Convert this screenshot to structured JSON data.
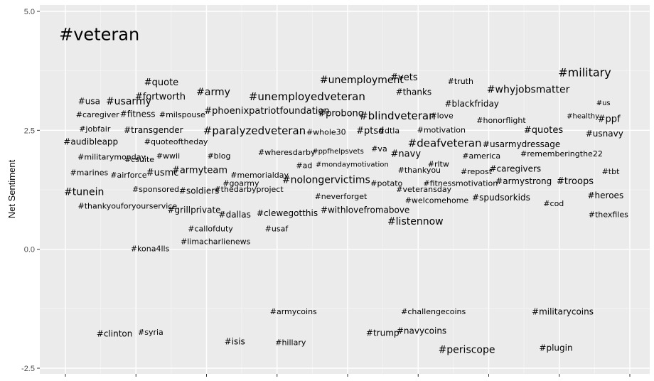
{
  "chart_data": {
    "type": "scatter",
    "subtype": "word-scatter",
    "ylabel": "Net Sentiment",
    "xlabel": "",
    "ylim": [
      -2.5,
      5.0
    ],
    "y_ticks": [
      "5.0",
      "2.5",
      "0.0",
      "-2.5"
    ],
    "grid": true,
    "colors": {
      "panel": "#ebebeb",
      "grid_major": "#ffffff",
      "grid_minor": "#f4f4f4",
      "text": "#000000",
      "tick_text": "#4d4d4d"
    },
    "words": [
      {
        "text": "#veteran",
        "x": 0.06,
        "y": 4.5,
        "size": 24
      },
      {
        "text": "#military",
        "x": 0.92,
        "y": 3.7,
        "size": 16
      },
      {
        "text": "#quote",
        "x": 0.17,
        "y": 3.5,
        "size": 13
      },
      {
        "text": "#unemployment",
        "x": 0.525,
        "y": 3.55,
        "size": 14
      },
      {
        "text": "#vets",
        "x": 0.6,
        "y": 3.6,
        "size": 13
      },
      {
        "text": "#truth",
        "x": 0.7,
        "y": 3.52,
        "size": 11
      },
      {
        "text": "#whyjobsmatter",
        "x": 0.82,
        "y": 3.35,
        "size": 14
      },
      {
        "text": "#army",
        "x": 0.262,
        "y": 3.3,
        "size": 14
      },
      {
        "text": "#thanks",
        "x": 0.617,
        "y": 3.3,
        "size": 12
      },
      {
        "text": "#fortworth",
        "x": 0.168,
        "y": 3.2,
        "size": 13
      },
      {
        "text": "#unemployedveteran",
        "x": 0.428,
        "y": 3.2,
        "size": 15
      },
      {
        "text": "#usa",
        "x": 0.042,
        "y": 3.1,
        "size": 12
      },
      {
        "text": "#usarmy",
        "x": 0.112,
        "y": 3.1,
        "size": 14
      },
      {
        "text": "#blackfriday",
        "x": 0.72,
        "y": 3.05,
        "size": 12
      },
      {
        "text": "#us",
        "x": 0.953,
        "y": 3.07,
        "size": 10
      },
      {
        "text": "#phoenixpatriotfoundation",
        "x": 0.357,
        "y": 2.9,
        "size": 13
      },
      {
        "text": "#probono",
        "x": 0.488,
        "y": 2.85,
        "size": 13
      },
      {
        "text": "#blindveteran",
        "x": 0.588,
        "y": 2.8,
        "size": 15
      },
      {
        "text": "#caregiver",
        "x": 0.057,
        "y": 2.82,
        "size": 11
      },
      {
        "text": "#fitness",
        "x": 0.128,
        "y": 2.83,
        "size": 12
      },
      {
        "text": "#milspouse",
        "x": 0.207,
        "y": 2.82,
        "size": 11
      },
      {
        "text": "#love",
        "x": 0.667,
        "y": 2.8,
        "size": 11
      },
      {
        "text": "#healthy",
        "x": 0.917,
        "y": 2.8,
        "size": 10
      },
      {
        "text": "#ppf",
        "x": 0.963,
        "y": 2.73,
        "size": 13
      },
      {
        "text": "#honorflight",
        "x": 0.772,
        "y": 2.7,
        "size": 11
      },
      {
        "text": "#jobfair",
        "x": 0.052,
        "y": 2.52,
        "size": 11
      },
      {
        "text": "#transgender",
        "x": 0.156,
        "y": 2.5,
        "size": 12
      },
      {
        "text": "#paralyzedveteran",
        "x": 0.335,
        "y": 2.48,
        "size": 15
      },
      {
        "text": "#whole30",
        "x": 0.462,
        "y": 2.45,
        "size": 11
      },
      {
        "text": "#ptsd",
        "x": 0.54,
        "y": 2.48,
        "size": 13
      },
      {
        "text": "#dtla",
        "x": 0.573,
        "y": 2.48,
        "size": 11
      },
      {
        "text": "#motivation",
        "x": 0.666,
        "y": 2.5,
        "size": 11
      },
      {
        "text": "#quotes",
        "x": 0.847,
        "y": 2.5,
        "size": 13
      },
      {
        "text": "#usnavy",
        "x": 0.955,
        "y": 2.42,
        "size": 12
      },
      {
        "text": "#audibleapp",
        "x": 0.045,
        "y": 2.25,
        "size": 12
      },
      {
        "text": "#quoteoftheday",
        "x": 0.196,
        "y": 2.25,
        "size": 11
      },
      {
        "text": "#deafveteran",
        "x": 0.672,
        "y": 2.22,
        "size": 15
      },
      {
        "text": "#usarmydressage",
        "x": 0.808,
        "y": 2.2,
        "size": 12
      },
      {
        "text": "#wheresdarby",
        "x": 0.392,
        "y": 2.03,
        "size": 11
      },
      {
        "text": "#ppfhelpsvets",
        "x": 0.483,
        "y": 2.06,
        "size": 10
      },
      {
        "text": "#va",
        "x": 0.556,
        "y": 2.1,
        "size": 11
      },
      {
        "text": "#navy",
        "x": 0.603,
        "y": 2.0,
        "size": 13
      },
      {
        "text": "#rememberingthe22",
        "x": 0.879,
        "y": 2.0,
        "size": 11
      },
      {
        "text": "#militarymonday",
        "x": 0.082,
        "y": 1.93,
        "size": 11
      },
      {
        "text": "#csuite",
        "x": 0.131,
        "y": 1.88,
        "size": 11
      },
      {
        "text": "#wwii",
        "x": 0.182,
        "y": 1.95,
        "size": 11
      },
      {
        "text": "#blog",
        "x": 0.272,
        "y": 1.95,
        "size": 11
      },
      {
        "text": "#america",
        "x": 0.737,
        "y": 1.95,
        "size": 11
      },
      {
        "text": "#ad",
        "x": 0.423,
        "y": 1.75,
        "size": 11
      },
      {
        "text": "#mondaymotivation",
        "x": 0.508,
        "y": 1.78,
        "size": 10
      },
      {
        "text": "#rltw",
        "x": 0.661,
        "y": 1.78,
        "size": 11
      },
      {
        "text": "#caregivers",
        "x": 0.797,
        "y": 1.68,
        "size": 12
      },
      {
        "text": "#marines",
        "x": 0.042,
        "y": 1.6,
        "size": 11
      },
      {
        "text": "#airforce",
        "x": 0.112,
        "y": 1.55,
        "size": 11
      },
      {
        "text": "#usmc",
        "x": 0.172,
        "y": 1.6,
        "size": 13
      },
      {
        "text": "#armyteam",
        "x": 0.238,
        "y": 1.65,
        "size": 13
      },
      {
        "text": "#memorialday",
        "x": 0.344,
        "y": 1.55,
        "size": 11
      },
      {
        "text": "#thankyou",
        "x": 0.627,
        "y": 1.65,
        "size": 11
      },
      {
        "text": "#repost",
        "x": 0.728,
        "y": 1.62,
        "size": 11
      },
      {
        "text": "#tbt",
        "x": 0.966,
        "y": 1.62,
        "size": 11
      },
      {
        "text": "#nolongervictims",
        "x": 0.462,
        "y": 1.45,
        "size": 14
      },
      {
        "text": "#goarmy",
        "x": 0.311,
        "y": 1.38,
        "size": 11
      },
      {
        "text": "#potato",
        "x": 0.569,
        "y": 1.38,
        "size": 11
      },
      {
        "text": "#fitnessmotivation",
        "x": 0.7,
        "y": 1.38,
        "size": 11
      },
      {
        "text": "#armystrong",
        "x": 0.812,
        "y": 1.42,
        "size": 12
      },
      {
        "text": "#troops",
        "x": 0.903,
        "y": 1.42,
        "size": 13
      },
      {
        "text": "#sponsored",
        "x": 0.16,
        "y": 1.25,
        "size": 11
      },
      {
        "text": "#soldiers",
        "x": 0.237,
        "y": 1.22,
        "size": 12
      },
      {
        "text": "#thedarbyproject",
        "x": 0.325,
        "y": 1.25,
        "size": 11
      },
      {
        "text": "#veteransday",
        "x": 0.635,
        "y": 1.25,
        "size": 11
      },
      {
        "text": "#tunein",
        "x": 0.033,
        "y": 1.2,
        "size": 14
      },
      {
        "text": "#heroes",
        "x": 0.957,
        "y": 1.12,
        "size": 12
      },
      {
        "text": "#neverforget",
        "x": 0.488,
        "y": 1.1,
        "size": 11
      },
      {
        "text": "#spudsorkids",
        "x": 0.772,
        "y": 1.08,
        "size": 12
      },
      {
        "text": "#welcomehome",
        "x": 0.658,
        "y": 1.02,
        "size": 11
      },
      {
        "text": "#cod",
        "x": 0.865,
        "y": 0.95,
        "size": 11
      },
      {
        "text": "#thankyouforyourservice",
        "x": 0.11,
        "y": 0.9,
        "size": 11
      },
      {
        "text": "#grillprivate",
        "x": 0.228,
        "y": 0.82,
        "size": 12
      },
      {
        "text": "#withlovefromabove",
        "x": 0.531,
        "y": 0.82,
        "size": 12
      },
      {
        "text": "#dallas",
        "x": 0.3,
        "y": 0.72,
        "size": 12
      },
      {
        "text": "#clewegotthis",
        "x": 0.393,
        "y": 0.75,
        "size": 12
      },
      {
        "text": "#listennow",
        "x": 0.62,
        "y": 0.58,
        "size": 14
      },
      {
        "text": "#thexfiles",
        "x": 0.962,
        "y": 0.72,
        "size": 11
      },
      {
        "text": "#callofduty",
        "x": 0.257,
        "y": 0.42,
        "size": 11
      },
      {
        "text": "#usaf",
        "x": 0.374,
        "y": 0.42,
        "size": 11
      },
      {
        "text": "#limacharlienews",
        "x": 0.266,
        "y": 0.15,
        "size": 11
      },
      {
        "text": "#kona4lls",
        "x": 0.15,
        "y": 0.0,
        "size": 11
      },
      {
        "text": "#armycoins",
        "x": 0.404,
        "y": -1.32,
        "size": 11
      },
      {
        "text": "#challengecoins",
        "x": 0.652,
        "y": -1.32,
        "size": 11
      },
      {
        "text": "#militarycoins",
        "x": 0.881,
        "y": -1.32,
        "size": 12
      },
      {
        "text": "#navycoins",
        "x": 0.631,
        "y": -1.72,
        "size": 12
      },
      {
        "text": "#clinton",
        "x": 0.087,
        "y": -1.78,
        "size": 12
      },
      {
        "text": "#syria",
        "x": 0.151,
        "y": -1.75,
        "size": 11
      },
      {
        "text": "#trump",
        "x": 0.562,
        "y": -1.77,
        "size": 12
      },
      {
        "text": "#isis",
        "x": 0.3,
        "y": -1.95,
        "size": 12
      },
      {
        "text": "#hillary",
        "x": 0.399,
        "y": -1.97,
        "size": 11
      },
      {
        "text": "#periscope",
        "x": 0.711,
        "y": -2.12,
        "size": 14
      },
      {
        "text": "#plugin",
        "x": 0.869,
        "y": -2.08,
        "size": 12
      }
    ]
  }
}
